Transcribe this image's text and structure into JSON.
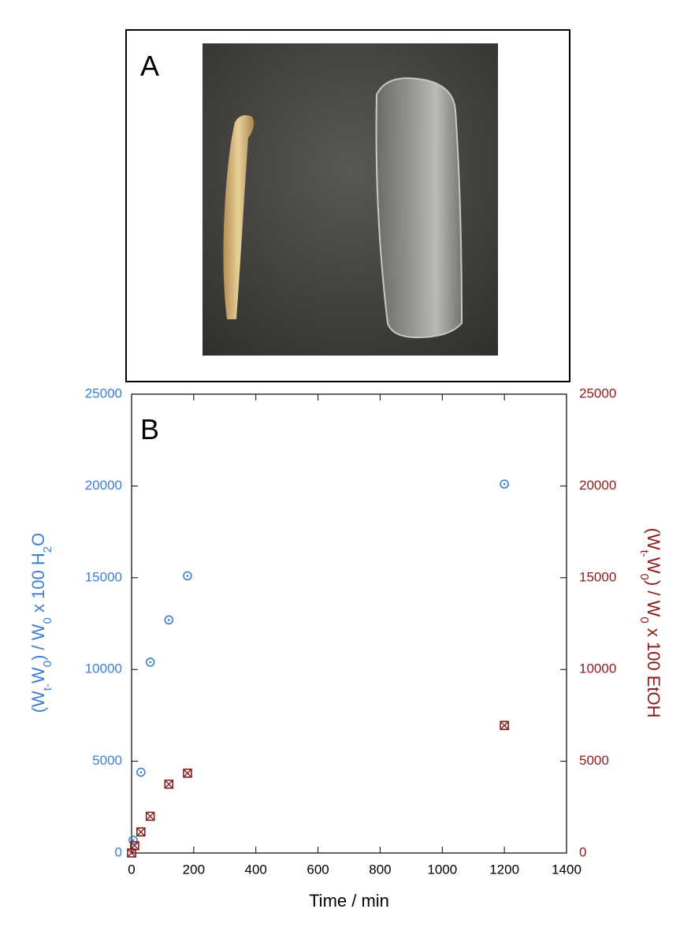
{
  "chart_data": {
    "type": "scatter",
    "panel_a_label": "A",
    "panel_b_label": "B",
    "xlabel": "Time / min",
    "ylabel": [
      "(W",
      "t-",
      "W",
      "0",
      ") / W",
      "0",
      " x 100 H",
      "2",
      "O"
    ],
    "y2label": [
      "(W",
      "t-",
      "W",
      "0",
      ") / W",
      "0",
      " x 100 EtOH"
    ],
    "xlim": [
      0,
      1400
    ],
    "xticks": [
      0,
      200,
      400,
      600,
      800,
      1000,
      1200,
      1400
    ],
    "ylim": [
      0,
      25000
    ],
    "yticks": [
      0,
      5000,
      10000,
      15000,
      20000,
      25000
    ],
    "y2lim": [
      0,
      25000
    ],
    "y2ticks": [
      0,
      5000,
      10000,
      15000,
      20000,
      25000
    ],
    "series": [
      {
        "name": "H2O",
        "color": "#3b7fd6",
        "marker": "circle",
        "x": [
          5,
          30,
          60,
          120,
          180,
          1200
        ],
        "values": [
          700,
          4400,
          10400,
          12700,
          15100,
          20100
        ]
      },
      {
        "name": "EtOH",
        "color": "#8b1c1c",
        "marker": "square",
        "axis": "y2",
        "x": [
          0,
          10,
          30,
          60,
          120,
          180,
          1200
        ],
        "values": [
          0,
          400,
          1150,
          2000,
          3750,
          4350,
          6950
        ]
      }
    ]
  }
}
